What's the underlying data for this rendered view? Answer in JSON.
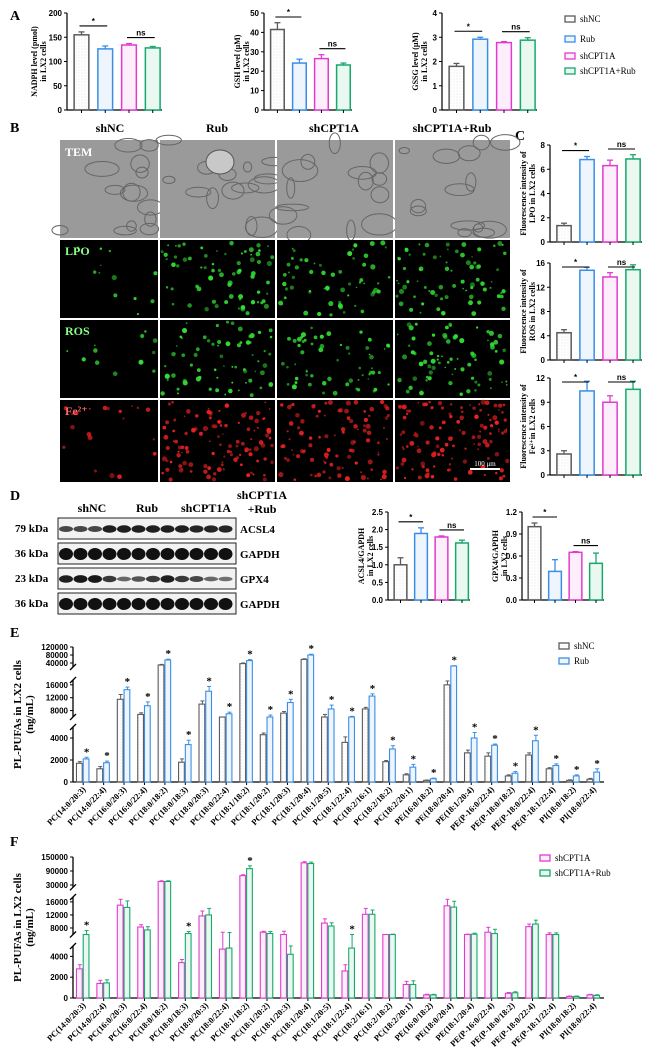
{
  "panel_labels": {
    "A": "A",
    "B": "B",
    "C": "C",
    "D": "D",
    "E": "E",
    "F": "F"
  },
  "groups": [
    "shNC",
    "Rub",
    "shCPT1A",
    "shCPT1A+Rub"
  ],
  "colors": {
    "shNC": "#5a5a5a",
    "Rub": "#3a8ee6",
    "shCPT1A": "#e03ccf",
    "shCPT1A+Rub": "#17a86b"
  },
  "panel_b": {
    "columns": [
      "shNC",
      "Rub",
      "shCPT1A",
      "shCPT1A+Rub"
    ],
    "rows": [
      "TEM",
      "LPO",
      "ROS",
      "Fe²⁺"
    ],
    "row_colors": {
      "TEM": "#888888",
      "LPO": "#33dd33",
      "ROS": "#33dd33",
      "Fe²⁺": "#ee2222"
    },
    "scale_bar": "100 μm"
  },
  "panel_d": {
    "columns": [
      "shNC",
      "Rub",
      "shCPT1A"
    ],
    "last_column": [
      "shCPT1A",
      "+Rub"
    ],
    "blots": [
      {
        "kda": "79 kDa",
        "protein": "ACSL4"
      },
      {
        "kda": "36 kDa",
        "protein": "GAPDH"
      },
      {
        "kda": "23 kDa",
        "protein": "GPX4"
      },
      {
        "kda": "36 kDa",
        "protein": "GAPDH"
      }
    ]
  },
  "chart_data": [
    {
      "type": "bar",
      "categories": [
        "shNC",
        "Rub",
        "shCPT1A",
        "shCPT1A+Rub"
      ],
      "values": [
        155,
        126,
        134,
        128
      ],
      "errors": [
        6,
        6,
        3,
        3
      ],
      "ylim": [
        0,
        200
      ],
      "yticks": [
        0,
        50,
        100,
        150,
        200
      ],
      "ylabel": [
        "NADPH level (pmol)",
        "in LX2 cells"
      ],
      "significance": [
        {
          "pair": [
            0,
            1
          ],
          "label": "*"
        },
        {
          "pair": [
            2,
            3
          ],
          "label": "ns"
        }
      ]
    },
    {
      "type": "bar",
      "categories": [
        "shNC",
        "Rub",
        "shCPT1A",
        "shCPT1A+Rub"
      ],
      "values": [
        41.5,
        24.2,
        26.5,
        23.2
      ],
      "errors": [
        3.5,
        2,
        2,
        1
      ],
      "ylim": [
        0,
        50
      ],
      "yticks": [
        0,
        10,
        20,
        30,
        40,
        50
      ],
      "ylabel": [
        "GSH level (μM)",
        "in LX2 cells"
      ],
      "significance": [
        {
          "pair": [
            0,
            1
          ],
          "label": "*"
        },
        {
          "pair": [
            2,
            3
          ],
          "label": "ns"
        }
      ]
    },
    {
      "type": "bar",
      "categories": [
        "shNC",
        "Rub",
        "shCPT1A",
        "shCPT1A+Rub"
      ],
      "values": [
        1.8,
        2.92,
        2.78,
        2.88
      ],
      "errors": [
        0.12,
        0.08,
        0.04,
        0.1
      ],
      "ylim": [
        0,
        4
      ],
      "yticks": [
        0,
        1,
        2,
        3,
        4
      ],
      "ylabel": [
        "GSSG level (μM)",
        "in LX2 cells"
      ],
      "significance": [
        {
          "pair": [
            0,
            1
          ],
          "label": "*"
        },
        {
          "pair": [
            2,
            3
          ],
          "label": "ns"
        }
      ]
    },
    {
      "type": "bar",
      "categories": [
        "shNC",
        "Rub",
        "shCPT1A",
        "shCPT1A+Rub"
      ],
      "values": [
        1.35,
        6.8,
        6.3,
        6.85
      ],
      "errors": [
        0.2,
        0.25,
        0.45,
        0.35
      ],
      "ylim": [
        0,
        8
      ],
      "yticks": [
        0,
        2,
        4,
        6,
        8
      ],
      "ylabel": [
        "Fluorescence intensity of",
        "LPO in LX2 cells"
      ],
      "significance": [
        {
          "pair": [
            0,
            1
          ],
          "label": "*"
        },
        {
          "pair": [
            2,
            3
          ],
          "label": "ns"
        }
      ]
    },
    {
      "type": "bar",
      "categories": [
        "shNC",
        "Rub",
        "shCPT1A",
        "shCPT1A+Rub"
      ],
      "values": [
        4.5,
        14.8,
        13.7,
        14.9
      ],
      "errors": [
        0.5,
        0.5,
        0.7,
        0.8
      ],
      "ylim": [
        0,
        16
      ],
      "yticks": [
        0,
        4,
        8,
        12,
        16
      ],
      "ylabel": [
        "Fluorescence intensity of",
        "ROS in LX2 cells"
      ],
      "significance": [
        {
          "pair": [
            0,
            1
          ],
          "label": "*"
        },
        {
          "pair": [
            2,
            3
          ],
          "label": "ns"
        }
      ]
    },
    {
      "type": "bar",
      "categories": [
        "shNC",
        "Rub",
        "shCPT1A",
        "shCPT1A+Rub"
      ],
      "values": [
        2.6,
        10.4,
        9.0,
        10.6
      ],
      "errors": [
        0.4,
        1.2,
        0.8,
        1.0
      ],
      "ylim": [
        0,
        12
      ],
      "yticks": [
        0,
        3,
        6,
        9,
        12
      ],
      "ylabel": [
        "Fluorescence intensity of",
        "Fe²⁺in LX2 cells"
      ],
      "significance": [
        {
          "pair": [
            0,
            1
          ],
          "label": "*"
        },
        {
          "pair": [
            2,
            3
          ],
          "label": "ns"
        }
      ]
    },
    {
      "type": "bar",
      "categories": [
        "shNC",
        "Rub",
        "shCPT1A",
        "shCPT1A+Rub"
      ],
      "values": [
        1.0,
        1.89,
        1.79,
        1.62
      ],
      "errors": [
        0.2,
        0.16,
        0.03,
        0.08
      ],
      "ylim": [
        0,
        2.5
      ],
      "yticks": [
        0.0,
        0.5,
        1.0,
        1.5,
        2.0,
        2.5
      ],
      "ylabel": [
        "ACSL4/GAPDH",
        "in LX2 cells"
      ],
      "significance": [
        {
          "pair": [
            0,
            1
          ],
          "label": "*"
        },
        {
          "pair": [
            2,
            3
          ],
          "label": "ns"
        }
      ]
    },
    {
      "type": "bar",
      "categories": [
        "shNC",
        "Rub",
        "shCPT1A",
        "shCPT1A+Rub"
      ],
      "values": [
        1.0,
        0.39,
        0.65,
        0.5
      ],
      "errors": [
        0.05,
        0.16,
        0.01,
        0.14
      ],
      "ylim": [
        0,
        1.2
      ],
      "yticks": [
        0.0,
        0.3,
        0.6,
        0.9,
        1.2
      ],
      "ylabel": [
        "GPX4/GAPDH",
        "in LX2 cells"
      ],
      "significance": [
        {
          "pair": [
            0,
            1
          ],
          "label": "*"
        },
        {
          "pair": [
            2,
            3
          ],
          "label": "ns"
        }
      ]
    },
    {
      "type": "bar",
      "axis_break": true,
      "categories": [
        "PC(14:0/20:3)",
        "PC(14:0/22:4)",
        "PC(16:0/20:3)",
        "PC(16:0/22:4)",
        "PC(18:0/18:2)",
        "PC(18:0/18:3)",
        "PC(18:0/20:3)",
        "PC(18:0/22:4)",
        "PC(18:1/18:2)",
        "PC(18:1/20:2)",
        "PC(18:1/20:3)",
        "PC(18:1/20:4)",
        "PC(18:1/20:5)",
        "PC(18:1/22:4)",
        "PC(18:2/16:1)",
        "PC(18:2/18:2)",
        "PC(18:2/20:1)",
        "PE(16:0/18:2)",
        "PE(18:0/20:4)",
        "PE(18:1/20:4)",
        "PE(P-16:0/22:4)",
        "PE(P-18:0/18:2)",
        "PE(P-18:0/22:4)",
        "PE(P-18:1/22:4)",
        "PI(18:0/18:2)",
        "PI(18:0/22:4)"
      ],
      "y_segments": [
        [
          0,
          5000
        ],
        [
          6000,
          17500
        ],
        [
          20000,
          120000
        ]
      ],
      "yticks": [
        0,
        2000,
        4000,
        8000,
        12000,
        16000,
        40000,
        80000,
        120000
      ],
      "ylabel": [
        "PL-PUFAs in LX2 cells",
        "(ng/mL)"
      ],
      "legend": "top-right",
      "series": [
        {
          "name": "shNC",
          "values": [
            1700,
            1200,
            11500,
            6800,
            30000,
            1800,
            10000,
            5500,
            37000,
            4300,
            7200,
            58000,
            6000,
            3600,
            8500,
            1850,
            650,
            150,
            16000,
            2650,
            2350,
            550,
            2450,
            1200,
            150,
            250
          ],
          "errors": [
            150,
            200,
            1500,
            500,
            3000,
            300,
            1000,
            400,
            3000,
            150,
            500,
            3000,
            800,
            500,
            500,
            100,
            100,
            30,
            1200,
            250,
            300,
            100,
            200,
            100,
            50,
            80
          ]
        },
        {
          "name": "Rub",
          "values": [
            2100,
            1750,
            14500,
            9500,
            55000,
            3400,
            14000,
            7000,
            52000,
            6000,
            10500,
            80000,
            8500,
            6000,
            12500,
            3000,
            1350,
            300,
            25000,
            4000,
            3350,
            800,
            3750,
            1500,
            550,
            900
          ],
          "errors": [
            150,
            150,
            800,
            1200,
            4000,
            400,
            1500,
            500,
            5000,
            600,
            1000,
            4000,
            1200,
            200,
            700,
            300,
            250,
            50,
            1500,
            500,
            100,
            150,
            500,
            150,
            100,
            300
          ],
          "significant": [
            true,
            true,
            true,
            true,
            true,
            true,
            true,
            true,
            true,
            true,
            true,
            true,
            true,
            true,
            true,
            true,
            true,
            true,
            true,
            true,
            true,
            true,
            true,
            true,
            true,
            true
          ]
        }
      ]
    },
    {
      "type": "bar",
      "axis_break": true,
      "categories": [
        "PC(14:0/20:3)",
        "PC(14:0/22:4)",
        "PC(16:0/20:3)",
        "PC(16:0/22:4)",
        "PC(18:0/18:2)",
        "PC(18:0/18:3)",
        "PC(18:0/20:3)",
        "PC(18:0/22:4)",
        "PC(18:1/18:2)",
        "PC(18:1/20:2)",
        "PC(18:1/20:3)",
        "PC(18:1/20:4)",
        "PC(18:1/20:5)",
        "PC(18:1/22:4)",
        "PC(18:2/16:1)",
        "PC(18:2/18:2)",
        "PC(18:2/20:1)",
        "PE(16:0/18:2)",
        "PE(18:0/20:4)",
        "PE(18:1/20:4)",
        "PE(P-16:0/22:4)",
        "PE(P-18:0/18:2)",
        "PE(P-18:0/22:4)",
        "PE(P-18:1/22:4)",
        "PI(18:0/18:2)",
        "PI(18:0/22:4)"
      ],
      "y_segments": [
        [
          0,
          5000
        ],
        [
          6000,
          17500
        ],
        [
          20000,
          150000
        ]
      ],
      "yticks": [
        0,
        2000,
        4000,
        8000,
        12000,
        16000,
        30000,
        90000,
        150000
      ],
      "ylabel": [
        "PL-PUFAs in LX2 cells",
        "(ng/mL)"
      ],
      "legend": "top-right",
      "series": [
        {
          "name": "shCPT1A",
          "values": [
            2800,
            1400,
            15000,
            8300,
            45000,
            3400,
            11700,
            4700,
            70000,
            6700,
            5500,
            125000,
            9500,
            2600,
            12200,
            5500,
            1300,
            300,
            14800,
            5800,
            6700,
            450,
            8400,
            5500,
            150,
            300
          ],
          "errors": [
            400,
            300,
            1800,
            700,
            3000,
            300,
            1500,
            2000,
            4000,
            300,
            1500,
            5000,
            1300,
            600,
            1800,
            300,
            300,
            60,
            2000,
            300,
            1500,
            80,
            800,
            1000,
            40,
            50
          ]
        },
        {
          "name": "shCPT1A+Rub",
          "values": [
            6000,
            1450,
            14300,
            7400,
            45000,
            6300,
            12000,
            4800,
            100000,
            6300,
            4200,
            122000,
            8600,
            4800,
            12200,
            5500,
            1300,
            300,
            14400,
            6100,
            6300,
            500,
            9200,
            5500,
            150,
            250
          ],
          "errors": [
            1200,
            300,
            2000,
            1000,
            3000,
            600,
            2000,
            1800,
            12000,
            600,
            800,
            6000,
            1000,
            800,
            1300,
            600,
            350,
            50,
            1800,
            300,
            1300,
            100,
            1200,
            1000,
            40,
            60
          ],
          "significant": [
            true,
            false,
            false,
            false,
            false,
            true,
            false,
            false,
            true,
            false,
            false,
            false,
            false,
            true,
            false,
            false,
            false,
            false,
            false,
            false,
            false,
            false,
            false,
            false,
            false,
            false
          ]
        }
      ]
    }
  ]
}
